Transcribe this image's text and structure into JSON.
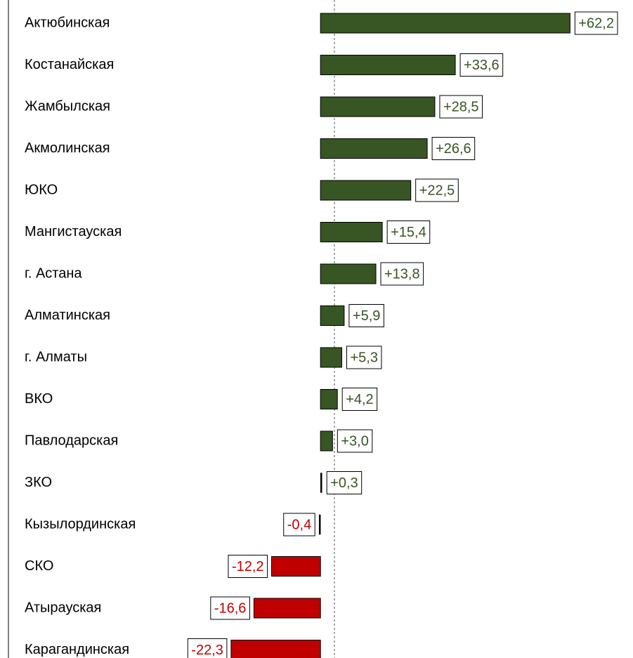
{
  "chart_data": {
    "type": "bar",
    "orientation": "horizontal",
    "categories": [
      "Актюбинская",
      "Костанайская",
      "Жамбылская",
      "Акмолинская",
      "ЮКО",
      "Мангистауская",
      "г. Астана",
      "Алматинская",
      "г. Алматы",
      "ВКО",
      "Павлодарская",
      "ЗКО",
      "Кызылординская",
      "СКО",
      "Атырауская",
      "Карагандинская"
    ],
    "values": [
      62.2,
      33.6,
      28.5,
      26.6,
      22.5,
      15.4,
      13.8,
      5.9,
      5.3,
      4.2,
      3.0,
      0.3,
      -0.4,
      -12.2,
      -16.6,
      -22.3
    ],
    "value_labels": [
      "+62,2",
      "+33,6",
      "+28,5",
      "+26,6",
      "+22,5",
      "+15,4",
      "+13,8",
      "+5,9",
      "+5,3",
      "+4,2",
      "+3,0",
      "+0,3",
      "-0,4",
      "-12,2",
      "-16,6",
      "-22,3"
    ],
    "positive_color": "#375623",
    "negative_color": "#c00000",
    "xlim": [
      -79.9,
      77.9
    ]
  }
}
